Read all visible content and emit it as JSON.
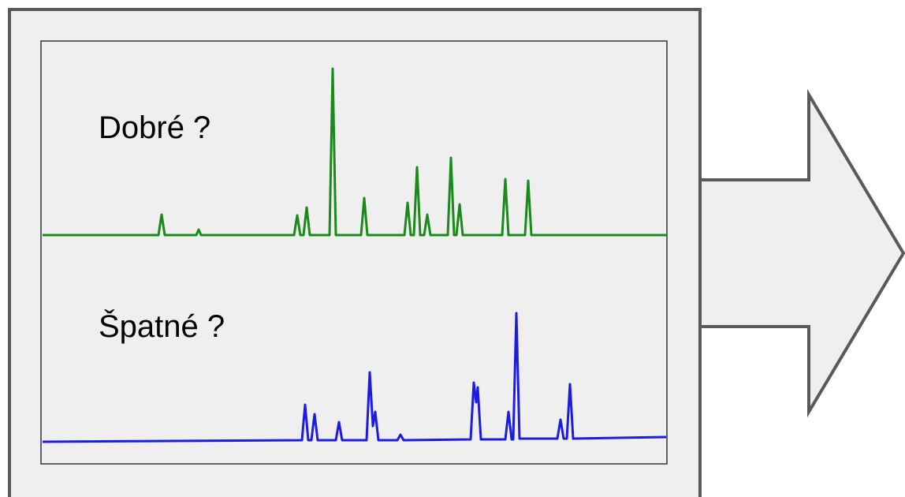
{
  "panel": {
    "labels": [
      "Dobré ?",
      "Špatné ?"
    ]
  }
}
